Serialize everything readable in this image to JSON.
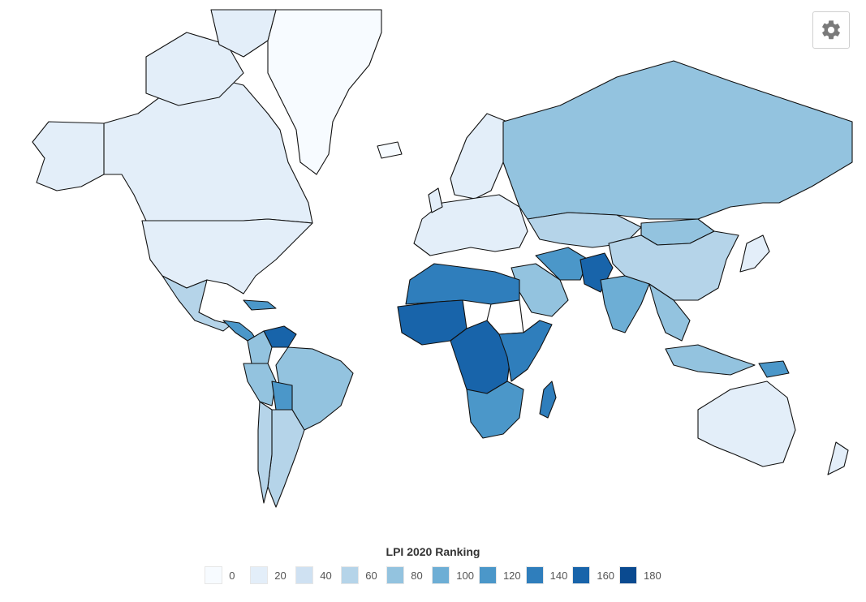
{
  "settings": {
    "icon": "gear-icon"
  },
  "legend": {
    "title": "LPI 2020 Ranking",
    "bins": [
      {
        "label": "0",
        "color": "#f7fbff"
      },
      {
        "label": "20",
        "color": "#e3eef9"
      },
      {
        "label": "40",
        "color": "#cfe1f2"
      },
      {
        "label": "60",
        "color": "#b5d4e9"
      },
      {
        "label": "80",
        "color": "#93c3df"
      },
      {
        "label": "100",
        "color": "#6daed5"
      },
      {
        "label": "120",
        "color": "#4b97c9"
      },
      {
        "label": "140",
        "color": "#2f7ebc"
      },
      {
        "label": "160",
        "color": "#1864aa"
      },
      {
        "label": "180",
        "color": "#0a4a90"
      }
    ]
  },
  "regions": [
    {
      "name": "greenland",
      "value": 0
    },
    {
      "name": "canada",
      "value": 20
    },
    {
      "name": "usa",
      "value": 18
    },
    {
      "name": "alaska",
      "value": 18
    },
    {
      "name": "mexico",
      "value": 60
    },
    {
      "name": "central-america",
      "value": 110
    },
    {
      "name": "venezuela",
      "value": 150
    },
    {
      "name": "colombia",
      "value": 80
    },
    {
      "name": "brazil",
      "value": 70
    },
    {
      "name": "peru",
      "value": 80
    },
    {
      "name": "bolivia",
      "value": 110
    },
    {
      "name": "argentina",
      "value": 60
    },
    {
      "name": "chile",
      "value": 50
    },
    {
      "name": "scandinavia",
      "value": 20
    },
    {
      "name": "iceland",
      "value": 5
    },
    {
      "name": "europe",
      "value": 25
    },
    {
      "name": "russia",
      "value": 80
    },
    {
      "name": "kazakhstan",
      "value": 60
    },
    {
      "name": "mongolia",
      "value": 85
    },
    {
      "name": "china",
      "value": 50
    },
    {
      "name": "india",
      "value": 90
    },
    {
      "name": "middle-east",
      "value": 75
    },
    {
      "name": "iran",
      "value": 120
    },
    {
      "name": "afghanistan",
      "value": 160
    },
    {
      "name": "north-africa",
      "value": 130
    },
    {
      "name": "west-africa",
      "value": 150
    },
    {
      "name": "central-africa",
      "value": 155
    },
    {
      "name": "sudan",
      "value": 0
    },
    {
      "name": "east-africa",
      "value": 140
    },
    {
      "name": "southern-africa",
      "value": 110
    },
    {
      "name": "madagascar",
      "value": 140
    },
    {
      "name": "southeast-asia",
      "value": 80
    },
    {
      "name": "indonesia",
      "value": 70
    },
    {
      "name": "papua-new-guinea",
      "value": 110
    },
    {
      "name": "australia",
      "value": 20
    },
    {
      "name": "new-zealand",
      "value": 20
    },
    {
      "name": "japan",
      "value": 10
    }
  ]
}
